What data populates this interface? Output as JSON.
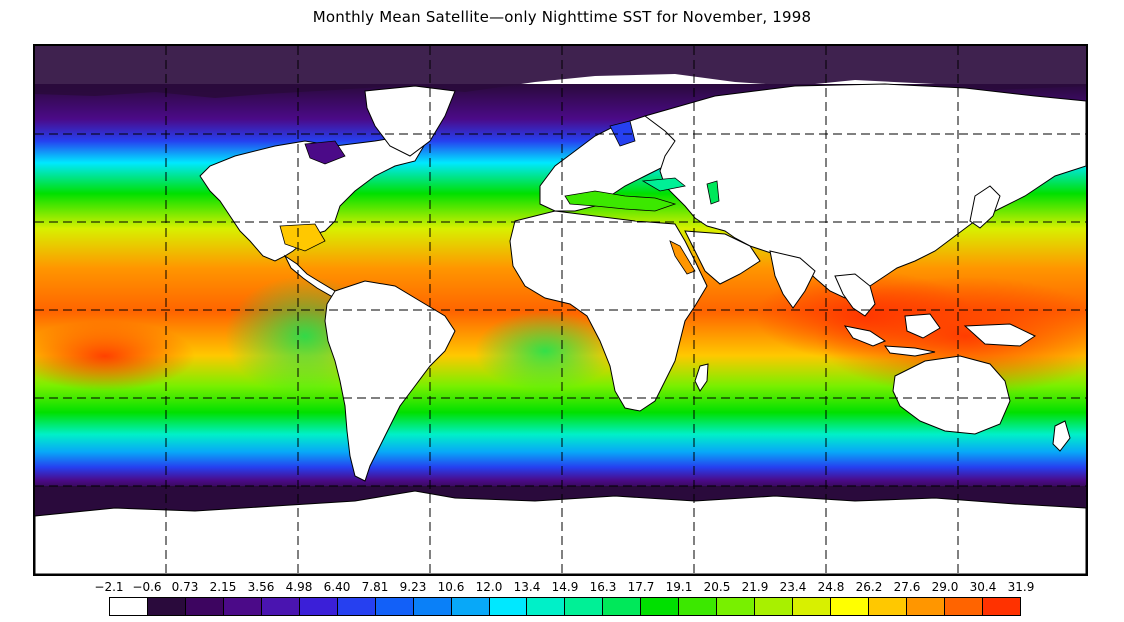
{
  "title": "Monthly Mean Satellite—only Nighttime SST for November, 1998",
  "legend": {
    "tick_labels": [
      "−2.1",
      "−0.6",
      "0.73",
      "2.15",
      "3.56",
      "4.98",
      "6.40",
      "7.81",
      "9.23",
      "10.6",
      "12.0",
      "13.4",
      "14.9",
      "16.3",
      "17.7",
      "19.1",
      "20.5",
      "21.9",
      "23.4",
      "24.8",
      "26.2",
      "27.6",
      "29.0",
      "30.4",
      "31.9"
    ],
    "colors": [
      "#ffffff",
      "#2a0a3c",
      "#3d0560",
      "#4b0a88",
      "#4a14b0",
      "#3b1fd8",
      "#2640f0",
      "#1260f8",
      "#0a80f8",
      "#08a8f8",
      "#00e8ff",
      "#00f0c8",
      "#00f096",
      "#00e85a",
      "#00e000",
      "#3ce800",
      "#78f000",
      "#a8f000",
      "#d8f000",
      "#ffff00",
      "#ffc800",
      "#ff9600",
      "#ff6400",
      "#ff3200"
    ]
  },
  "map": {
    "grid": "dashed",
    "land_color": "#ffffff",
    "ice_color": "#2a0a3c"
  }
}
